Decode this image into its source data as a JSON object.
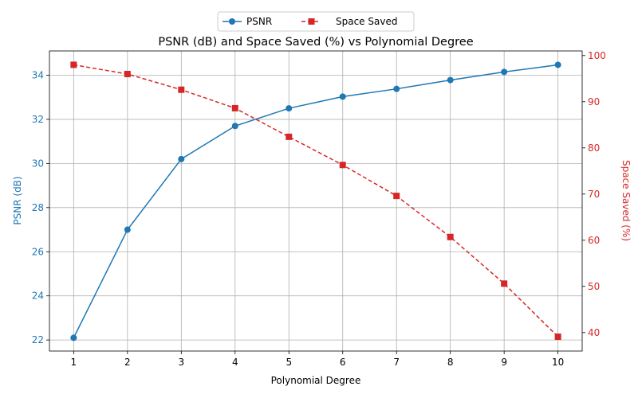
{
  "chart_data": {
    "type": "line",
    "title": "PSNR (dB) and Space Saved (%) vs Polynomial Degree",
    "xlabel": "Polynomial Degree",
    "x": [
      1,
      2,
      3,
      4,
      5,
      6,
      7,
      8,
      9,
      10
    ],
    "xlim": [
      0.55,
      10.45
    ],
    "grid": true,
    "legend_position": "top-center",
    "series": [
      {
        "name": "PSNR",
        "axis": "left",
        "ylabel": "PSNR (dB)",
        "color": "#1f77b4",
        "marker": "circle",
        "linestyle": "solid",
        "values": [
          22.1,
          27.0,
          30.2,
          31.7,
          32.5,
          33.03,
          33.38,
          33.78,
          34.15,
          34.47
        ],
        "ylim": [
          21.5,
          35.1
        ],
        "yticks": [
          22,
          24,
          26,
          28,
          30,
          32,
          34
        ]
      },
      {
        "name": "Space Saved",
        "axis": "right",
        "ylabel": "Space Saved (%)",
        "color": "#d62728",
        "marker": "square",
        "linestyle": "dashed",
        "values": [
          98.0,
          96.0,
          92.6,
          88.6,
          82.4,
          76.3,
          69.6,
          60.7,
          50.6,
          39.1
        ],
        "ylim": [
          36.0,
          101.0
        ],
        "yticks": [
          40,
          50,
          60,
          70,
          80,
          90,
          100
        ]
      }
    ]
  }
}
